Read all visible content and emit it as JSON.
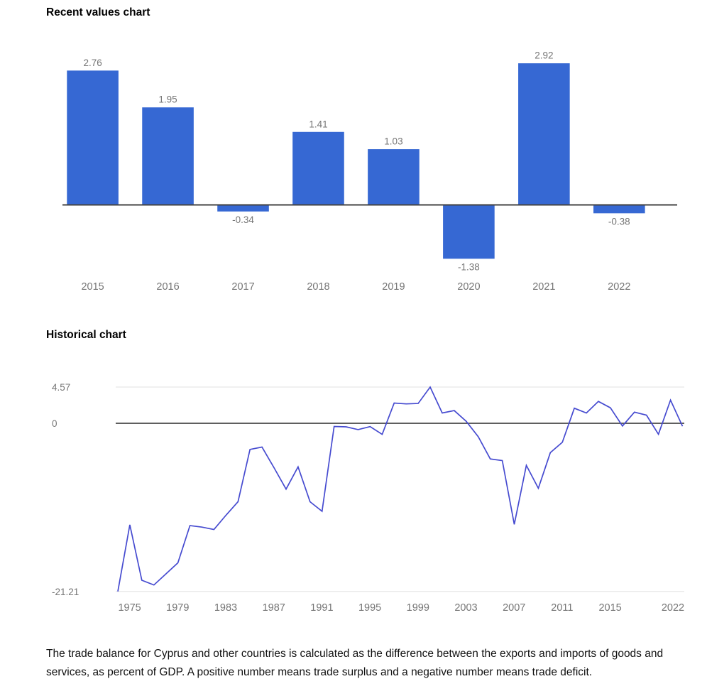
{
  "recent_section": {
    "title": "Recent values chart"
  },
  "historical_section": {
    "title": "Historical chart"
  },
  "caption": "The trade balance for Cyprus and other countries is calculated as the difference between the exports and imports of goods and services, as percent of GDP. A positive number means trade surplus and a negative number means trade deficit.",
  "colors": {
    "bar": "#3668d3",
    "line": "#464bd0",
    "bar_axis": "#444444",
    "zero_axis": "#5f5f5f",
    "grid": "#e6e6e6",
    "muted_text": "#757575"
  },
  "chart_data": [
    {
      "type": "bar",
      "title": "Recent values chart",
      "categories": [
        "2015",
        "2016",
        "2017",
        "2018",
        "2019",
        "2020",
        "2021",
        "2022"
      ],
      "values": [
        2.76,
        1.95,
        -0.34,
        1.41,
        1.03,
        -1.38,
        2.92,
        -0.38
      ],
      "value_labels": [
        "2.76",
        "1.95",
        "-0.34",
        "1.41",
        "1.03",
        "-1.38",
        "2.92",
        "-0.38"
      ],
      "xlabel": "",
      "ylabel": "",
      "ylim": [
        -1.6,
        3.1
      ],
      "grid": false,
      "legend": "none"
    },
    {
      "type": "line",
      "title": "Historical chart",
      "x": [
        1975,
        1976,
        1977,
        1978,
        1979,
        1980,
        1981,
        1982,
        1983,
        1984,
        1985,
        1986,
        1987,
        1988,
        1989,
        1990,
        1991,
        1992,
        1993,
        1994,
        1995,
        1996,
        1997,
        1998,
        1999,
        2000,
        2001,
        2002,
        2003,
        2004,
        2005,
        2006,
        2007,
        2008,
        2009,
        2010,
        2011,
        2012,
        2013,
        2014,
        2015,
        2016,
        2017,
        2018,
        2019,
        2020,
        2021,
        2022
      ],
      "values": [
        -21.21,
        -12.8,
        -19.8,
        -20.4,
        -19.0,
        -17.6,
        -12.9,
        -13.1,
        -13.4,
        -11.6,
        -9.9,
        -3.3,
        -3.0,
        -5.6,
        -8.3,
        -5.5,
        -9.9,
        -11.1,
        -0.4,
        -0.45,
        -0.8,
        -0.42,
        -1.4,
        2.55,
        2.45,
        2.5,
        4.57,
        1.3,
        1.6,
        0.25,
        -1.7,
        -4.5,
        -4.7,
        -12.75,
        -5.3,
        -8.2,
        -3.7,
        -2.4,
        1.9,
        1.3,
        2.76,
        1.95,
        -0.34,
        1.41,
        1.03,
        -1.38,
        2.92,
        -0.38
      ],
      "y_ticks": [
        {
          "label": "4.57",
          "value": 4.57
        },
        {
          "label": "0",
          "value": 0
        },
        {
          "label": "-21.21",
          "value": -21.21
        }
      ],
      "x_ticks": [
        {
          "label": "1975",
          "year": 1975
        },
        {
          "label": "1979",
          "year": 1979
        },
        {
          "label": "1983",
          "year": 1983
        },
        {
          "label": "1987",
          "year": 1987
        },
        {
          "label": "1991",
          "year": 1991
        },
        {
          "label": "1995",
          "year": 1995
        },
        {
          "label": "1999",
          "year": 1999
        },
        {
          "label": "2003",
          "year": 2003
        },
        {
          "label": "2007",
          "year": 2007
        },
        {
          "label": "2011",
          "year": 2011
        },
        {
          "label": "2015",
          "year": 2015
        },
        {
          "label": "2022",
          "year": 2022
        }
      ],
      "ylim": [
        -23.5,
        6
      ],
      "grid": true,
      "legend": "none"
    }
  ]
}
